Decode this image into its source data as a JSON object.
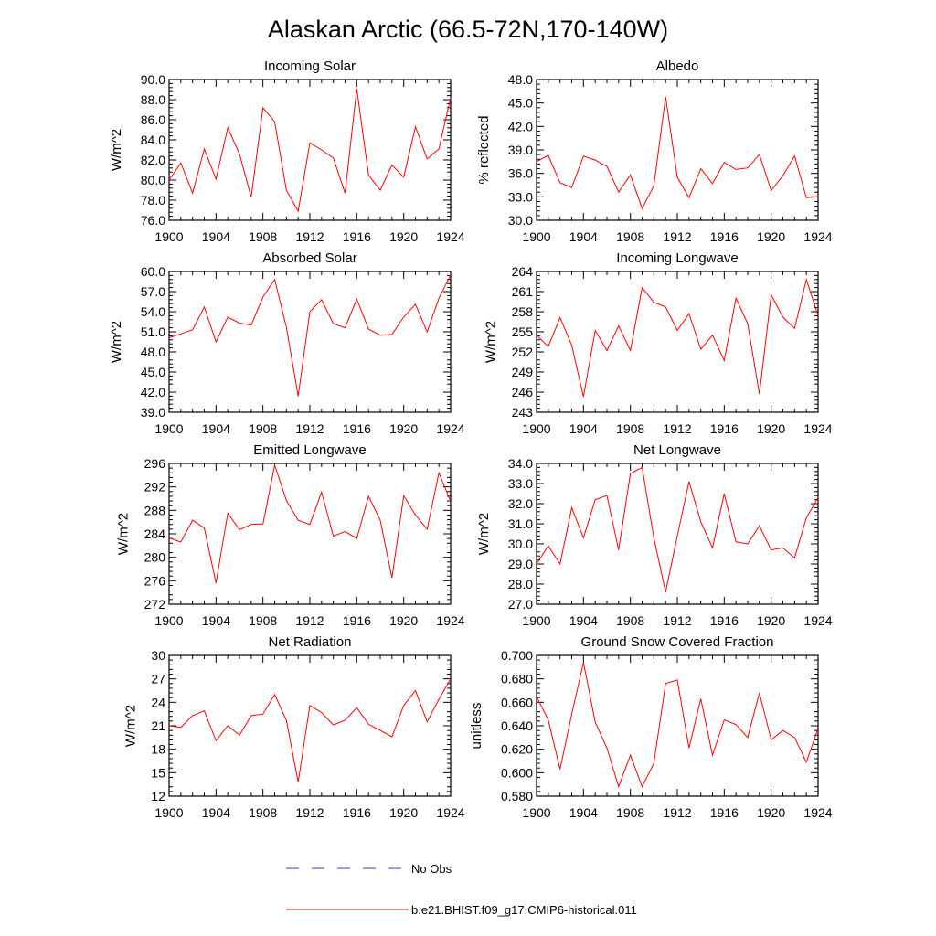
{
  "title": "Alaskan Arctic (66.5-72N,170-140W)",
  "legend": {
    "obs_label": "No Obs",
    "obs_color": "#3333cc",
    "model_label": "b.e21.BHIST.f09_g17.CMIP6-historical.011",
    "model_color": "#ff0000"
  },
  "x": [
    1900,
    1901,
    1902,
    1903,
    1904,
    1905,
    1906,
    1907,
    1908,
    1909,
    1910,
    1911,
    1912,
    1913,
    1914,
    1915,
    1916,
    1917,
    1918,
    1919,
    1920,
    1921,
    1922,
    1923,
    1924
  ],
  "chart_data": [
    {
      "type": "line",
      "title": "Incoming Solar",
      "ylabel": "W/m^2",
      "xlim": [
        1900,
        1924
      ],
      "ylim": [
        76.0,
        90.0
      ],
      "yticks": [
        "76.0",
        "78.0",
        "80.0",
        "82.0",
        "84.0",
        "86.0",
        "88.0",
        "90.0"
      ],
      "xticks": [
        "1900",
        "1904",
        "1908",
        "1912",
        "1916",
        "1920",
        "1924"
      ],
      "series": [
        {
          "name": "b.e21.BHIST.f09_g17.CMIP6-historical.011",
          "values": [
            80.0,
            81.7,
            78.7,
            83.1,
            80.1,
            85.2,
            82.6,
            78.3,
            87.2,
            85.8,
            79.0,
            76.9,
            83.7,
            83.0,
            82.2,
            78.7,
            89.1,
            80.5,
            79.0,
            81.5,
            80.3,
            85.3,
            82.1,
            83.1,
            88.2
          ]
        }
      ]
    },
    {
      "type": "line",
      "title": "Albedo",
      "ylabel": "% reflected",
      "xlim": [
        1900,
        1924
      ],
      "ylim": [
        30.0,
        48.0
      ],
      "yticks": [
        "30.0",
        "33.0",
        "36.0",
        "39.0",
        "42.0",
        "45.0",
        "48.0"
      ],
      "xticks": [
        "1900",
        "1904",
        "1908",
        "1912",
        "1916",
        "1920",
        "1924"
      ],
      "series": [
        {
          "name": "b.e21.BHIST.f09_g17.CMIP6-historical.011",
          "values": [
            37.5,
            38.3,
            34.8,
            34.2,
            38.2,
            37.7,
            36.9,
            33.6,
            35.8,
            31.5,
            34.4,
            45.8,
            35.5,
            32.9,
            36.6,
            34.7,
            37.4,
            36.5,
            36.7,
            38.4,
            33.8,
            35.7,
            38.2,
            32.9,
            33.0
          ]
        }
      ]
    },
    {
      "type": "line",
      "title": "Absorbed Solar",
      "ylabel": "W/m^2",
      "xlim": [
        1900,
        1924
      ],
      "ylim": [
        39.0,
        60.0
      ],
      "yticks": [
        "39.0",
        "42.0",
        "45.0",
        "48.0",
        "51.0",
        "54.0",
        "57.0",
        "60.0"
      ],
      "xticks": [
        "1900",
        "1904",
        "1908",
        "1912",
        "1916",
        "1920",
        "1924"
      ],
      "series": [
        {
          "name": "b.e21.BHIST.f09_g17.CMIP6-historical.011",
          "values": [
            50.1,
            50.7,
            51.3,
            54.7,
            49.5,
            53.2,
            52.3,
            52.0,
            56.2,
            58.8,
            51.7,
            41.4,
            54.0,
            55.8,
            52.2,
            51.6,
            55.9,
            51.4,
            50.5,
            50.6,
            53.2,
            55.1,
            51.0,
            56.0,
            59.5
          ]
        }
      ]
    },
    {
      "type": "line",
      "title": "Incoming Longwave",
      "ylabel": "W/m^2",
      "xlim": [
        1900,
        1924
      ],
      "ylim": [
        243,
        264
      ],
      "yticks": [
        "243",
        "246",
        "249",
        "252",
        "255",
        "258",
        "261",
        "264"
      ],
      "xticks": [
        "1900",
        "1904",
        "1908",
        "1912",
        "1916",
        "1920",
        "1924"
      ],
      "series": [
        {
          "name": "b.e21.BHIST.f09_g17.CMIP6-historical.011",
          "values": [
            254.5,
            252.8,
            257.1,
            253.0,
            245.3,
            255.2,
            252.2,
            255.9,
            252.2,
            261.6,
            259.4,
            258.7,
            255.2,
            257.7,
            252.4,
            254.5,
            250.7,
            260.0,
            256.2,
            245.7,
            260.5,
            257.2,
            255.5,
            262.8,
            257.4
          ]
        }
      ]
    },
    {
      "type": "line",
      "title": "Emitted Longwave",
      "ylabel": "W/m^2",
      "xlim": [
        1900,
        1924
      ],
      "ylim": [
        272,
        296
      ],
      "yticks": [
        "272",
        "276",
        "280",
        "284",
        "288",
        "292",
        "296"
      ],
      "xticks": [
        "1900",
        "1904",
        "1908",
        "1912",
        "1916",
        "1920",
        "1924"
      ],
      "series": [
        {
          "name": "b.e21.BHIST.f09_g17.CMIP6-historical.011",
          "values": [
            283.3,
            282.6,
            286.3,
            285.0,
            275.6,
            287.5,
            284.7,
            285.6,
            285.7,
            295.7,
            289.7,
            286.3,
            285.6,
            291.1,
            283.6,
            284.4,
            283.2,
            290.4,
            286.3,
            276.5,
            290.5,
            287.2,
            284.8,
            294.4,
            289.5
          ]
        }
      ]
    },
    {
      "type": "line",
      "title": "Net Longwave",
      "ylabel": "W/m^2",
      "xlim": [
        1900,
        1924
      ],
      "ylim": [
        27.0,
        34.0
      ],
      "yticks": [
        "27.0",
        "28.0",
        "29.0",
        "30.0",
        "31.0",
        "32.0",
        "33.0",
        "34.0"
      ],
      "xticks": [
        "1900",
        "1904",
        "1908",
        "1912",
        "1916",
        "1920",
        "1924"
      ],
      "series": [
        {
          "name": "b.e21.BHIST.f09_g17.CMIP6-historical.011",
          "values": [
            29.0,
            29.9,
            29.0,
            31.8,
            30.3,
            32.2,
            32.4,
            29.7,
            33.5,
            33.8,
            30.3,
            27.6,
            30.4,
            33.1,
            31.1,
            29.8,
            32.5,
            30.1,
            30.0,
            30.9,
            29.7,
            29.8,
            29.3,
            31.3,
            32.3
          ]
        }
      ]
    },
    {
      "type": "line",
      "title": "Net Radiation",
      "ylabel": "W/m^2",
      "xlim": [
        1900,
        1924
      ],
      "ylim": [
        12,
        30
      ],
      "yticks": [
        "12",
        "15",
        "18",
        "21",
        "24",
        "27",
        "30"
      ],
      "xticks": [
        "1900",
        "1904",
        "1908",
        "1912",
        "1916",
        "1920",
        "1924"
      ],
      "series": [
        {
          "name": "b.e21.BHIST.f09_g17.CMIP6-historical.011",
          "values": [
            21.0,
            20.8,
            22.3,
            22.9,
            19.1,
            21.0,
            19.8,
            22.3,
            22.5,
            25.0,
            21.7,
            13.8,
            23.6,
            22.7,
            21.1,
            21.7,
            23.3,
            21.2,
            20.4,
            19.6,
            23.6,
            25.5,
            21.5,
            24.4,
            27.0
          ]
        }
      ]
    },
    {
      "type": "line",
      "title": "Ground Snow Covered Fraction",
      "ylabel": "unitless",
      "xlim": [
        1900,
        1924
      ],
      "ylim": [
        0.58,
        0.7
      ],
      "yticks": [
        "0.580",
        "0.600",
        "0.620",
        "0.640",
        "0.660",
        "0.680",
        "0.700"
      ],
      "xticks": [
        "1900",
        "1904",
        "1908",
        "1912",
        "1916",
        "1920",
        "1924"
      ],
      "series": [
        {
          "name": "b.e21.BHIST.f09_g17.CMIP6-historical.011",
          "values": [
            0.665,
            0.645,
            0.603,
            0.65,
            0.694,
            0.643,
            0.621,
            0.588,
            0.615,
            0.588,
            0.608,
            0.676,
            0.679,
            0.621,
            0.663,
            0.615,
            0.645,
            0.641,
            0.63,
            0.668,
            0.628,
            0.636,
            0.63,
            0.609,
            0.638
          ]
        }
      ]
    }
  ]
}
